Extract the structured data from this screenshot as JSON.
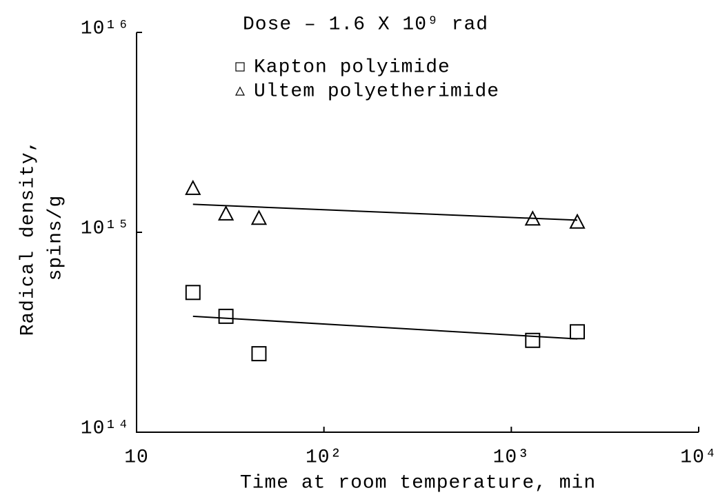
{
  "chart_data": {
    "type": "scatter",
    "title": "Dose – 1.6 X 10⁹ rad",
    "xlabel": "Time at room temperature, min",
    "ylabel": [
      "Radical density,",
      "spins/g"
    ],
    "xscale": "log",
    "yscale": "log",
    "xlim": [
      10,
      10000
    ],
    "ylim": [
      100000000000000.0,
      1e+16
    ],
    "xticks": [
      10,
      {
        "value": 100,
        "label": "10²"
      },
      {
        "value": 1000,
        "label": "10³"
      },
      {
        "value": 10000,
        "label": "10⁴"
      }
    ],
    "yticks": [
      {
        "value": 100000000000000.0,
        "label": "10¹⁴"
      },
      {
        "value": 1000000000000000.0,
        "label": "10¹⁵"
      },
      {
        "value": 1e+16,
        "label": "10¹⁶"
      }
    ],
    "grid": false,
    "legend": "top",
    "series": [
      {
        "name": "Kapton polyimide",
        "color": "#000000",
        "marker": "square",
        "x": [
          20,
          30,
          45,
          1300,
          2250
        ],
        "values": [
          500000000000000.0,
          380000000000000.0,
          247000000000000.0,
          288000000000000.0,
          318000000000000.0
        ],
        "fit": {
          "x": [
            20,
            2250
          ],
          "values": [
            380000000000000.0,
            293000000000000.0
          ]
        }
      },
      {
        "name": "Ultem polyetherimide",
        "color": "#000000",
        "marker": "triangle",
        "x": [
          20,
          30,
          45,
          1300,
          2250
        ],
        "values": [
          1650000000000000.0,
          1230000000000000.0,
          1170000000000000.0,
          1160000000000000.0,
          1120000000000000.0
        ],
        "fit": {
          "x": [
            20,
            2250
          ],
          "values": [
            1380000000000000.0,
            1150000000000000.0
          ]
        }
      }
    ]
  }
}
